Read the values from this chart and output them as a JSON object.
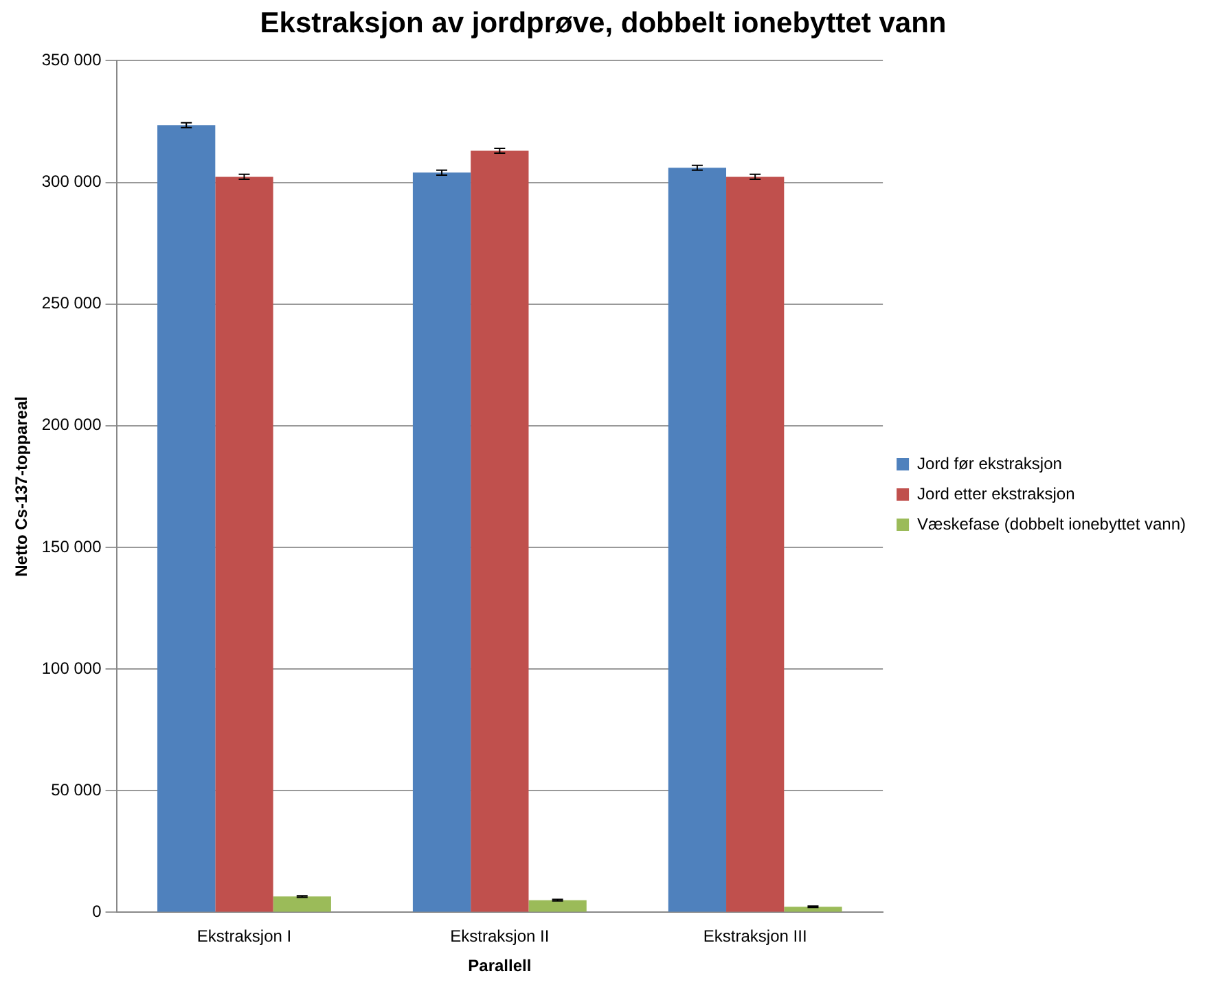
{
  "chart_data": {
    "type": "bar",
    "title": "Ekstraksjon av jordprøve, dobbelt ionebyttet vann",
    "xlabel": "Parallell",
    "ylabel": "Netto Cs-137-toppareal",
    "categories": [
      "Ekstraksjon I",
      "Ekstraksjon II",
      "Ekstraksjon III"
    ],
    "series": [
      {
        "name": "Jord før ekstraksjon",
        "color": "#4f81bd",
        "values": [
          323500,
          304000,
          306000
        ],
        "errors": [
          1000,
          1000,
          1000
        ]
      },
      {
        "name": "Jord etter ekstraksjon",
        "color": "#c0504d",
        "values": [
          302300,
          313000,
          302300
        ],
        "errors": [
          1000,
          1000,
          1000
        ]
      },
      {
        "name": "Væskefase (dobbelt ionebyttet vann)",
        "color": "#9bbb59",
        "values": [
          6500,
          5000,
          2300
        ],
        "errors": [
          300,
          300,
          300
        ]
      }
    ],
    "ylim": [
      0,
      350000
    ],
    "yticks": [
      {
        "value": 0,
        "label": "0"
      },
      {
        "value": 50000,
        "label": "50 000"
      },
      {
        "value": 100000,
        "label": "100 000"
      },
      {
        "value": 150000,
        "label": "150 000"
      },
      {
        "value": 200000,
        "label": "200 000"
      },
      {
        "value": 250000,
        "label": "250 000"
      },
      {
        "value": 300000,
        "label": "300 000"
      },
      {
        "value": 350000,
        "label": "350 000"
      }
    ],
    "grid": "y",
    "legend": "right"
  }
}
